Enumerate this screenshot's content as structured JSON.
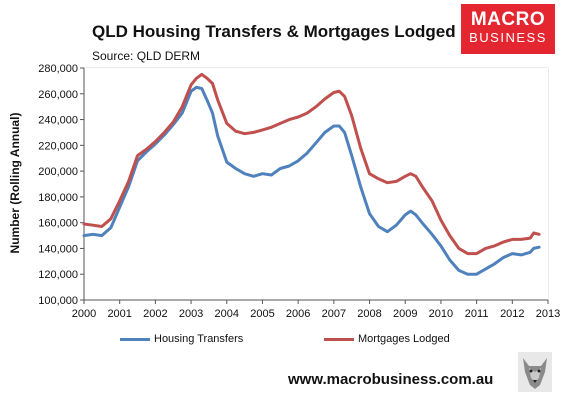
{
  "header": {
    "title": "QLD Housing Transfers & Mortgages Lodged",
    "source": "Source: QLD DERM"
  },
  "logo": {
    "line1": "MACRO",
    "line2": "BUSINESS",
    "color": "#e3262f"
  },
  "footer": {
    "url": "www.macrobusiness.com.au",
    "icon": "wolf-logo-icon"
  },
  "chart_data": {
    "type": "line",
    "ylabel": "Number (Rolling Annual)",
    "xlim": [
      2000,
      2013
    ],
    "ylim": [
      100000,
      280000
    ],
    "x_ticks": [
      "2000",
      "2001",
      "2002",
      "2003",
      "2004",
      "2005",
      "2006",
      "2007",
      "2008",
      "2009",
      "2010",
      "2011",
      "2012",
      "2013"
    ],
    "y_ticks": [
      "100,000",
      "120,000",
      "140,000",
      "160,000",
      "180,000",
      "200,000",
      "220,000",
      "240,000",
      "260,000",
      "280,000"
    ],
    "grid": true,
    "legend": "bottom",
    "series": [
      {
        "name": "Housing Transfers",
        "color": "#4f81bd",
        "x": [
          2000.0,
          2000.25,
          2000.5,
          2000.75,
          2001.0,
          2001.25,
          2001.5,
          2001.75,
          2002.0,
          2002.25,
          2002.5,
          2002.75,
          2003.0,
          2003.15,
          2003.3,
          2003.45,
          2003.6,
          2003.75,
          2004.0,
          2004.25,
          2004.5,
          2004.75,
          2005.0,
          2005.25,
          2005.5,
          2005.75,
          2006.0,
          2006.25,
          2006.5,
          2006.75,
          2007.0,
          2007.15,
          2007.3,
          2007.5,
          2007.75,
          2008.0,
          2008.25,
          2008.5,
          2008.75,
          2009.0,
          2009.15,
          2009.3,
          2009.5,
          2009.75,
          2010.0,
          2010.25,
          2010.5,
          2010.75,
          2011.0,
          2011.25,
          2011.5,
          2011.75,
          2012.0,
          2012.25,
          2012.5,
          2012.6,
          2012.75
        ],
        "y": [
          150000,
          151000,
          150000,
          156000,
          172000,
          188000,
          208000,
          215000,
          221000,
          228000,
          236000,
          245000,
          262000,
          265000,
          264000,
          255000,
          245000,
          227000,
          207000,
          202000,
          198000,
          196000,
          198000,
          197000,
          202000,
          204000,
          208000,
          214000,
          222000,
          230000,
          235000,
          235000,
          230000,
          212000,
          188000,
          167000,
          157000,
          153000,
          158000,
          166000,
          169000,
          166000,
          159000,
          151000,
          142000,
          131000,
          123000,
          120000,
          120000,
          124000,
          128000,
          133000,
          136000,
          135000,
          137000,
          140000,
          141000
        ]
      },
      {
        "name": "Mortgages Lodged",
        "color": "#c0504d",
        "x": [
          2000.0,
          2000.25,
          2000.5,
          2000.75,
          2001.0,
          2001.25,
          2001.5,
          2001.75,
          2002.0,
          2002.25,
          2002.5,
          2002.75,
          2003.0,
          2003.15,
          2003.3,
          2003.45,
          2003.6,
          2003.75,
          2004.0,
          2004.25,
          2004.5,
          2004.75,
          2005.0,
          2005.25,
          2005.5,
          2005.75,
          2006.0,
          2006.25,
          2006.5,
          2006.75,
          2007.0,
          2007.15,
          2007.3,
          2007.5,
          2007.75,
          2008.0,
          2008.25,
          2008.5,
          2008.75,
          2009.0,
          2009.15,
          2009.3,
          2009.5,
          2009.75,
          2010.0,
          2010.25,
          2010.5,
          2010.75,
          2011.0,
          2011.25,
          2011.5,
          2011.75,
          2012.0,
          2012.25,
          2012.5,
          2012.6,
          2012.75
        ],
        "y": [
          159000,
          158000,
          157000,
          163000,
          177000,
          192000,
          212000,
          217000,
          223000,
          230000,
          238000,
          250000,
          267000,
          272000,
          275000,
          272000,
          268000,
          255000,
          237000,
          231000,
          229000,
          230000,
          232000,
          234000,
          237000,
          240000,
          242000,
          245000,
          250000,
          256000,
          261000,
          262000,
          258000,
          243000,
          218000,
          198000,
          194000,
          191000,
          192000,
          196000,
          198000,
          196000,
          187000,
          177000,
          162000,
          150000,
          140000,
          136000,
          136000,
          140000,
          142000,
          145000,
          147000,
          147000,
          148000,
          152000,
          151000
        ]
      }
    ]
  }
}
